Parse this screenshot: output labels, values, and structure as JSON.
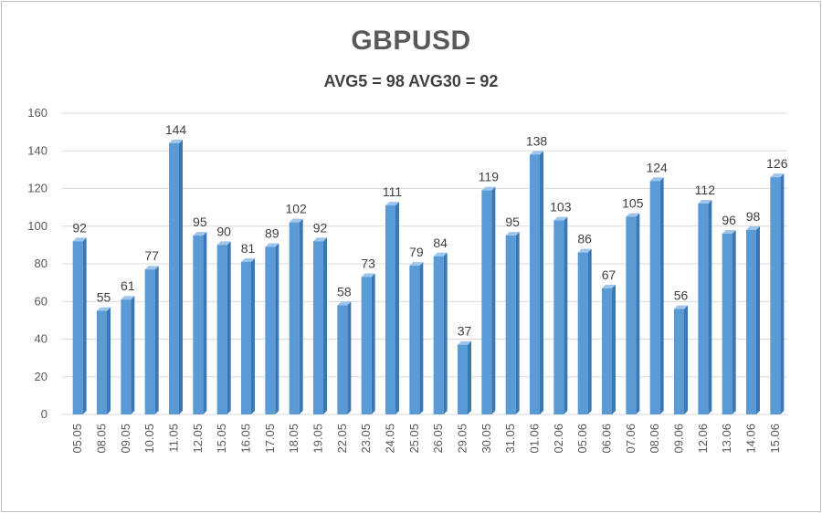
{
  "chart_data": {
    "type": "bar",
    "title": "GBPUSD",
    "subtitle": "AVG5 = 98 AVG30 = 92",
    "categories": [
      "05.05",
      "08.05",
      "09.05",
      "10.05",
      "11.05",
      "12.05",
      "15.05",
      "16.05",
      "17.05",
      "18.05",
      "19.05",
      "22.05",
      "23.05",
      "24.05",
      "25.05",
      "26.05",
      "29.05",
      "30.05",
      "31.05",
      "01.06",
      "02.06",
      "05.06",
      "06.06",
      "07.06",
      "08.06",
      "09.06",
      "12.06",
      "13.06",
      "14.06",
      "15.06"
    ],
    "values": [
      92,
      55,
      61,
      77,
      144,
      95,
      90,
      81,
      89,
      102,
      92,
      58,
      73,
      111,
      79,
      84,
      37,
      119,
      95,
      138,
      103,
      86,
      67,
      105,
      124,
      56,
      112,
      96,
      98,
      126
    ],
    "ylim": [
      0,
      160
    ],
    "yticks": [
      0,
      20,
      40,
      60,
      80,
      100,
      120,
      140,
      160
    ],
    "grid": true,
    "colors": {
      "bar_front": "#5b9bd5",
      "bar_side": "#3a78b5",
      "bar_top": "#9fc5ea",
      "grid": "#d9d9d9",
      "axis_text": "#595959"
    }
  }
}
